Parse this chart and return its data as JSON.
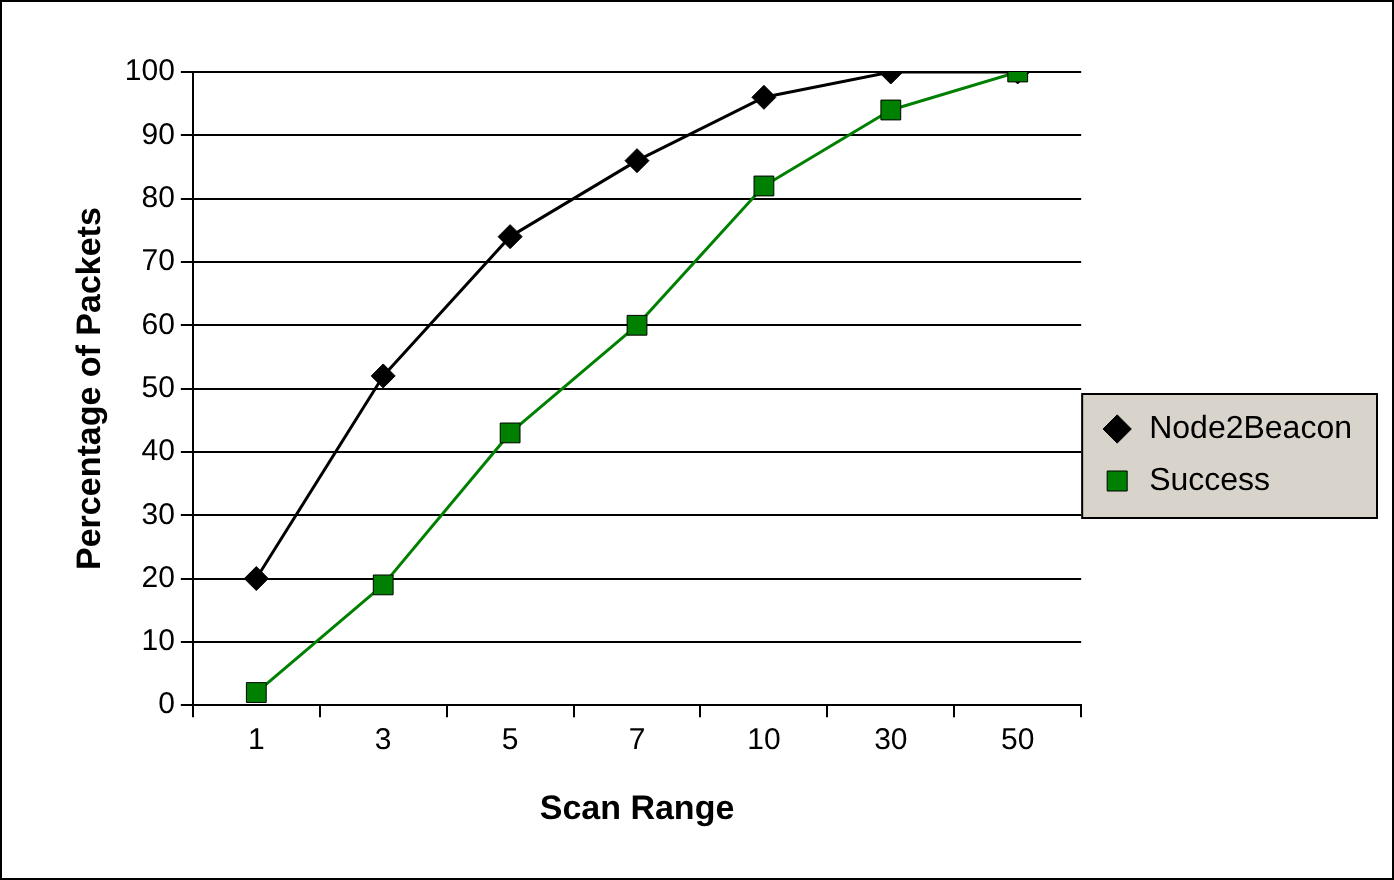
{
  "chart_data": {
    "type": "line",
    "xlabel": "Scan Range",
    "ylabel": "Percentage of Packets",
    "categories": [
      "1",
      "3",
      "5",
      "7",
      "10",
      "30",
      "50"
    ],
    "series": [
      {
        "name": "Node2Beacon",
        "color": "#000000",
        "marker": "diamond",
        "values": [
          20,
          52,
          74,
          86,
          96,
          100,
          100
        ]
      },
      {
        "name": "Success",
        "color": "#008000",
        "marker": "square",
        "values": [
          2,
          19,
          43,
          60,
          82,
          94,
          100
        ]
      }
    ],
    "ylim": [
      0,
      100
    ],
    "yticks": [
      0,
      10,
      20,
      30,
      40,
      50,
      60,
      70,
      80,
      90,
      100
    ],
    "grid": "y",
    "legend": "right",
    "line_style": "solid"
  }
}
